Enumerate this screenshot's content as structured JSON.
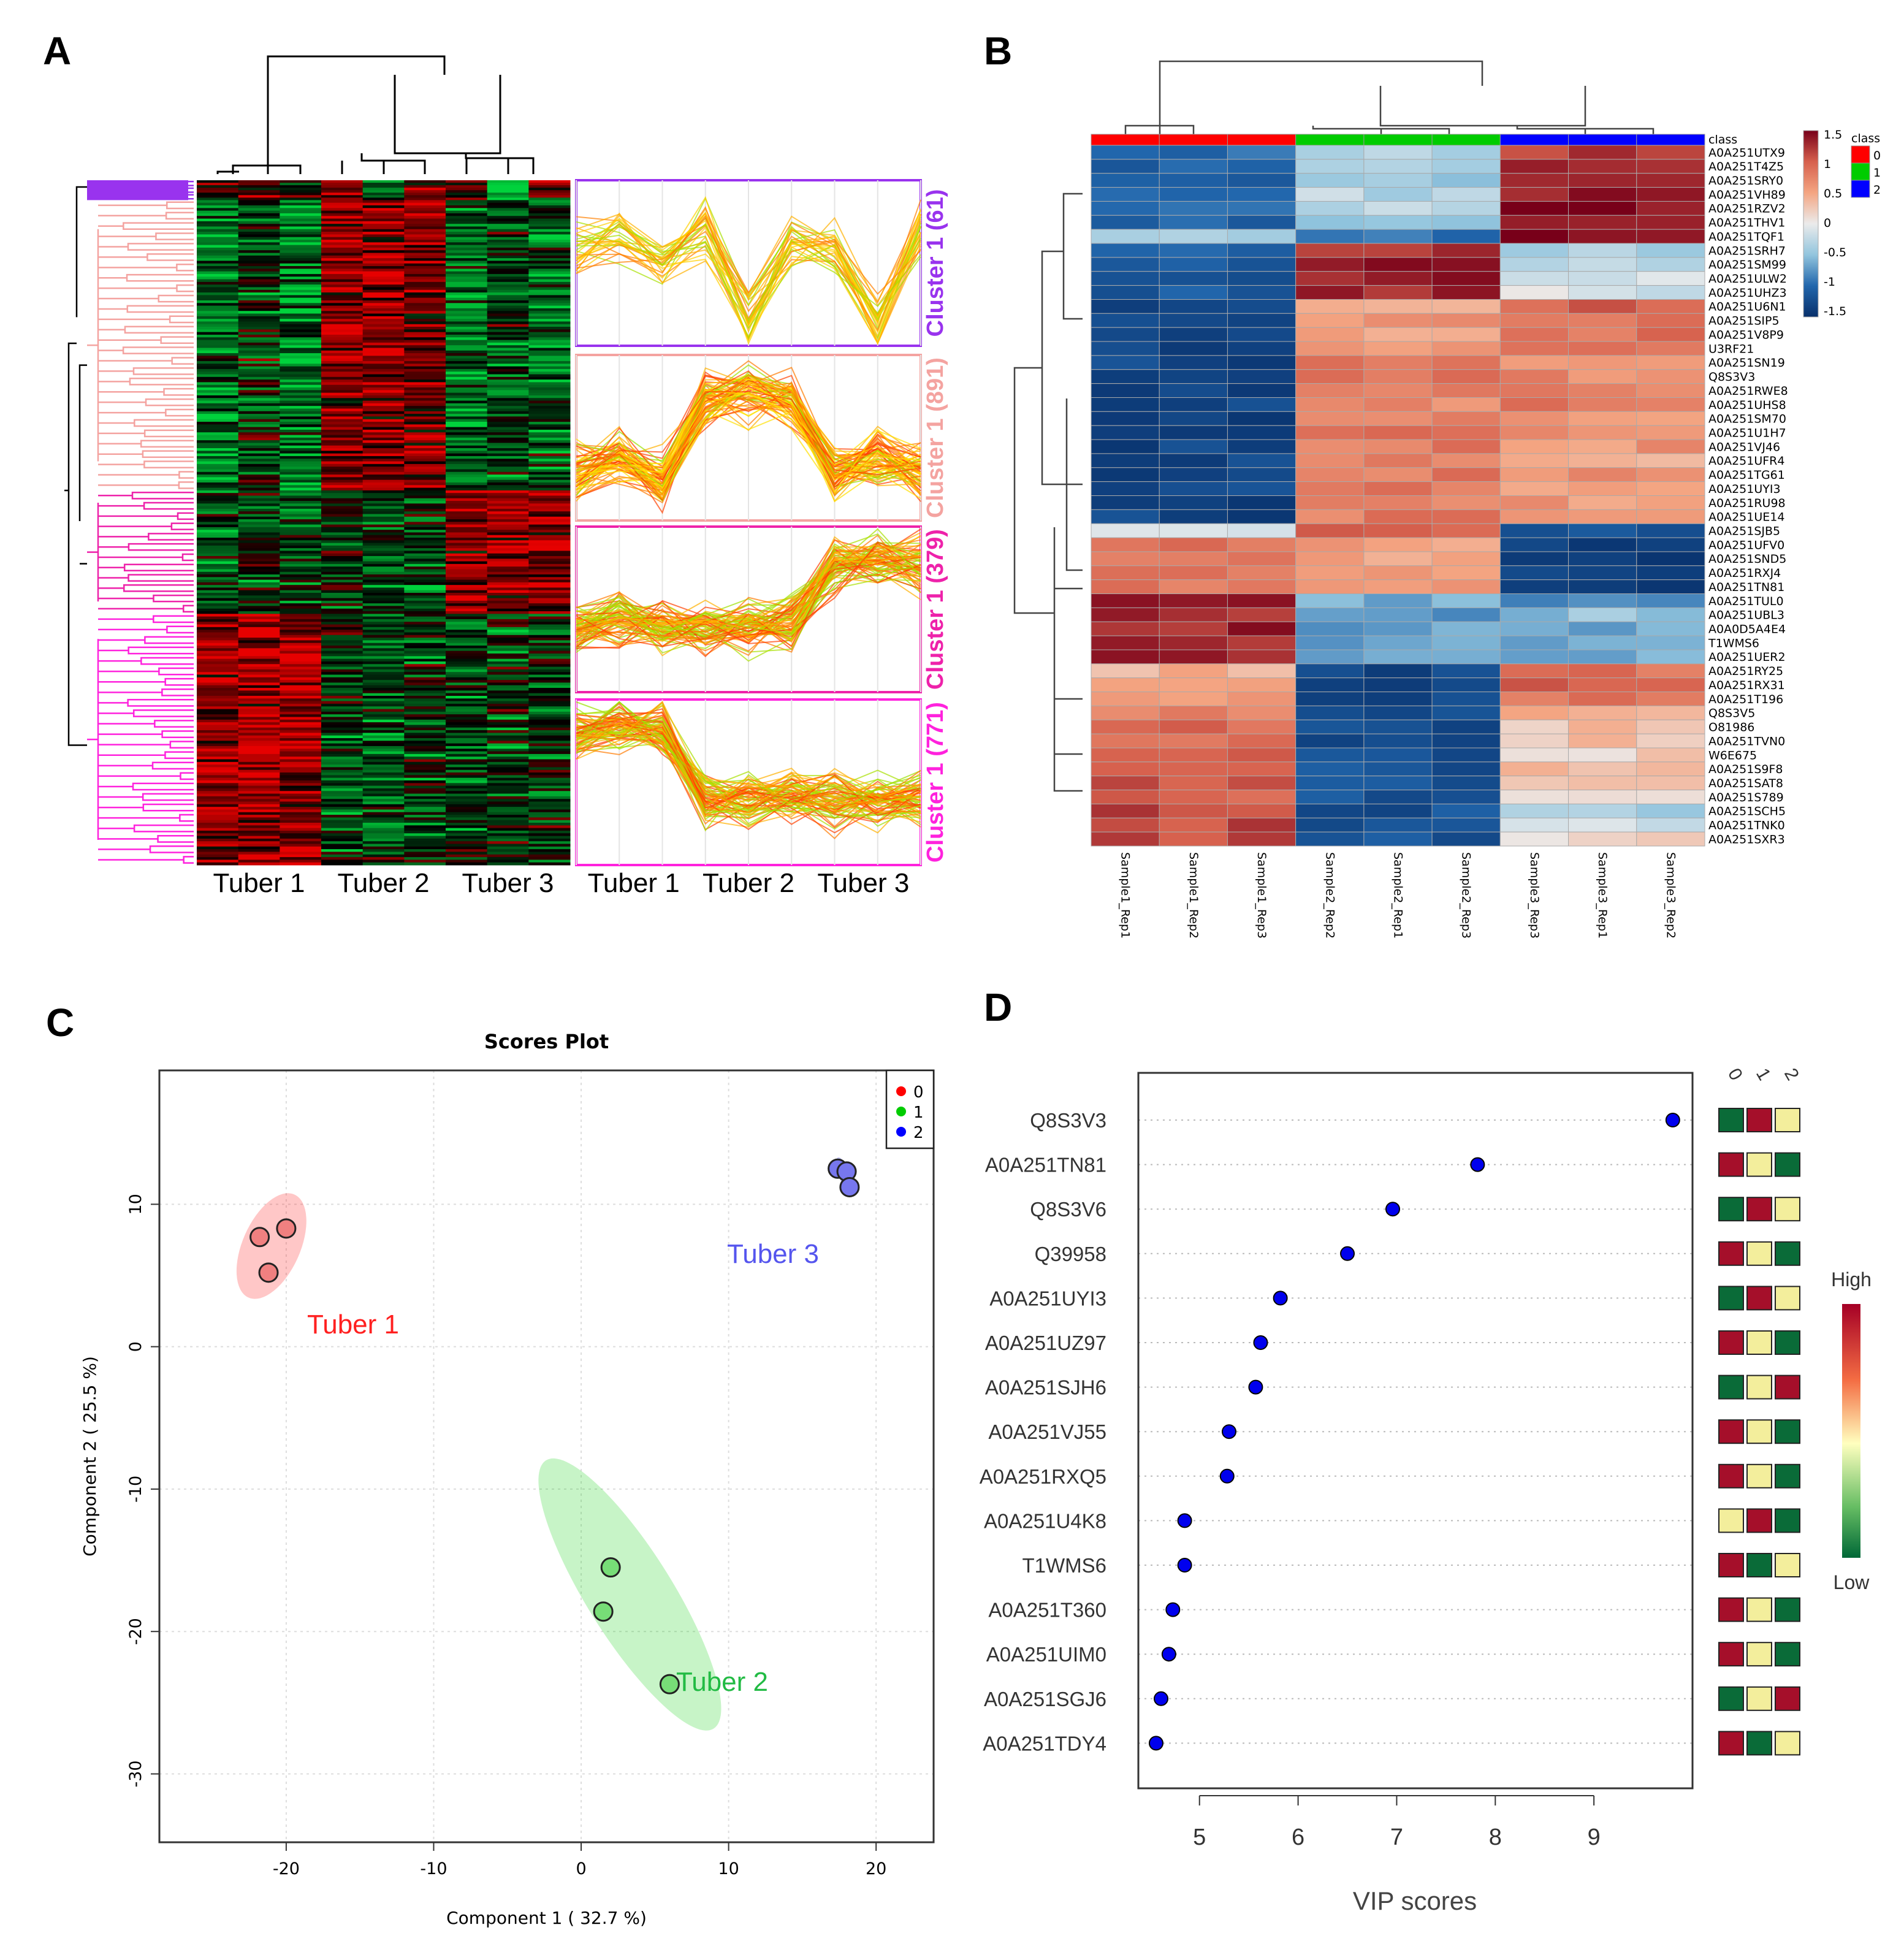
{
  "panels": {
    "a": "A",
    "b": "B",
    "c": "C",
    "d": "D"
  },
  "chart_data": [
    {
      "panel": "A",
      "type": "heatmap",
      "groups": [
        "Tuber 1",
        "Tuber 2",
        "Tuber 3"
      ],
      "replicates_per_group": 3,
      "color_low": "#00c040",
      "color_mid": "#000000",
      "color_high": "#e00000",
      "clusters": [
        {
          "label": "Cluster 1 (61)",
          "size": 61,
          "color": "#9933ee",
          "profile": [
            0.2,
            0.5,
            0.0,
            0.6,
            -0.9,
            0.3,
            0.2,
            -1.0,
            0.5
          ]
        },
        {
          "label": "Cluster 1 (891)",
          "size": 891,
          "color": "#f4a3a0",
          "profile": [
            -0.6,
            -0.3,
            -0.7,
            0.6,
            0.7,
            0.6,
            -0.6,
            -0.3,
            -0.5
          ]
        },
        {
          "label": "Cluster 1 (379)",
          "size": 379,
          "color": "#ee22aa",
          "profile": [
            -0.3,
            -0.2,
            -0.3,
            -0.2,
            -0.3,
            -0.2,
            0.7,
            0.8,
            0.7
          ]
        },
        {
          "label": "Cluster 1 (771)",
          "size": 771,
          "color": "#ff22dd",
          "profile": [
            0.8,
            0.9,
            0.8,
            -0.3,
            -0.3,
            -0.2,
            -0.3,
            -0.3,
            -0.2
          ]
        }
      ]
    },
    {
      "panel": "B",
      "type": "heatmap",
      "columns": [
        "Sample1_Rep1",
        "Sample1_Rep2",
        "Sample1_Rep3",
        "Sample2_Rep2",
        "Sample2_Rep1",
        "Sample2_Rep3",
        "Sample3_Rep3",
        "Sample3_Rep1",
        "Sample3_Rep2"
      ],
      "column_class": [
        0,
        0,
        0,
        1,
        1,
        1,
        2,
        2,
        2
      ],
      "class_title": "class",
      "class_legend": [
        {
          "label": "0",
          "color": "#ff0000"
        },
        {
          "label": "1",
          "color": "#00cc00"
        },
        {
          "label": "2",
          "color": "#0000ff"
        }
      ],
      "scale_ticks": [
        "1.5",
        "1",
        "0.5",
        "0",
        "-0.5",
        "-1",
        "-1.5"
      ],
      "scale_range": [
        -1.5,
        1.5
      ],
      "rows": [
        {
          "id": "A0A251UTX9",
          "g": [
            -1.0,
            -0.3,
            1.2
          ]
        },
        {
          "id": "A0A251T4Z5",
          "g": [
            -1.0,
            -0.3,
            1.3
          ]
        },
        {
          "id": "A0A251SRY0",
          "g": [
            -1.0,
            -0.4,
            1.3
          ]
        },
        {
          "id": "A0A251VH89",
          "g": [
            -1.0,
            -0.3,
            1.3
          ]
        },
        {
          "id": "A0A251RZV2",
          "g": [
            -1.0,
            -0.3,
            1.4
          ]
        },
        {
          "id": "A0A251THV1",
          "g": [
            -1.0,
            -0.4,
            1.3
          ]
        },
        {
          "id": "A0A251TQF1",
          "g": [
            -0.4,
            -1.0,
            1.4
          ]
        },
        {
          "id": "A0A251SRH7",
          "g": [
            -1.0,
            1.3,
            -0.4
          ]
        },
        {
          "id": "A0A251SM99",
          "g": [
            -1.1,
            1.3,
            -0.2
          ]
        },
        {
          "id": "A0A251ULW2",
          "g": [
            -1.1,
            1.3,
            -0.2
          ]
        },
        {
          "id": "A0A251UHZ3",
          "g": [
            -1.1,
            1.3,
            -0.1
          ]
        },
        {
          "id": "A0A251U6N1",
          "g": [
            -1.3,
            0.5,
            1.0
          ]
        },
        {
          "id": "A0A251SIP5",
          "g": [
            -1.3,
            0.6,
            0.8
          ]
        },
        {
          "id": "A0A251V8P9",
          "g": [
            -1.3,
            0.5,
            0.9
          ]
        },
        {
          "id": "U3RF21",
          "g": [
            -1.3,
            0.5,
            0.9
          ]
        },
        {
          "id": "A0A251SN19",
          "g": [
            -1.3,
            0.8,
            0.6
          ]
        },
        {
          "id": "Q8S3V3",
          "g": [
            -1.3,
            0.8,
            0.7
          ]
        },
        {
          "id": "A0A251RWE8",
          "g": [
            -1.3,
            0.8,
            0.7
          ]
        },
        {
          "id": "A0A251UHS8",
          "g": [
            -1.3,
            0.7,
            0.8
          ]
        },
        {
          "id": "A0A251SM70",
          "g": [
            -1.3,
            0.8,
            0.6
          ]
        },
        {
          "id": "A0A251U1H7",
          "g": [
            -1.3,
            0.8,
            0.6
          ]
        },
        {
          "id": "A0A251VJ46",
          "g": [
            -1.3,
            0.8,
            0.6
          ]
        },
        {
          "id": "A0A251UFR4",
          "g": [
            -1.3,
            0.8,
            0.5
          ]
        },
        {
          "id": "A0A251TG61",
          "g": [
            -1.3,
            0.8,
            0.6
          ]
        },
        {
          "id": "A0A251UYI3",
          "g": [
            -1.3,
            0.8,
            0.6
          ]
        },
        {
          "id": "A0A251RU98",
          "g": [
            -1.3,
            0.8,
            0.6
          ]
        },
        {
          "id": "A0A251UE14",
          "g": [
            -1.3,
            0.8,
            0.6
          ]
        },
        {
          "id": "A0A251SJB5",
          "g": [
            -0.1,
            1.0,
            -1.2
          ]
        },
        {
          "id": "A0A251UFV0",
          "g": [
            0.8,
            0.5,
            -1.3
          ]
        },
        {
          "id": "A0A251SND5",
          "g": [
            0.8,
            0.5,
            -1.4
          ]
        },
        {
          "id": "A0A251RXJ4",
          "g": [
            0.8,
            0.6,
            -1.4
          ]
        },
        {
          "id": "A0A251TN81",
          "g": [
            0.8,
            0.5,
            -1.3
          ]
        },
        {
          "id": "A0A251TUL0",
          "g": [
            1.3,
            -0.6,
            -0.9
          ]
        },
        {
          "id": "A0A251UBL3",
          "g": [
            1.3,
            -0.7,
            -0.5
          ]
        },
        {
          "id": "A0A0D5A4E4",
          "g": [
            1.3,
            -0.7,
            -0.6
          ]
        },
        {
          "id": "T1WMS6",
          "g": [
            1.3,
            -0.7,
            -0.6
          ]
        },
        {
          "id": "A0A251UER2",
          "g": [
            1.3,
            -0.7,
            -0.6
          ]
        },
        {
          "id": "A0A251RY25",
          "g": [
            0.4,
            -1.3,
            0.9
          ]
        },
        {
          "id": "A0A251RX31",
          "g": [
            0.4,
            -1.3,
            1.0
          ]
        },
        {
          "id": "A0A251T196",
          "g": [
            0.6,
            -1.3,
            0.8
          ]
        },
        {
          "id": "Q8S3V5",
          "g": [
            0.8,
            -1.3,
            0.5
          ]
        },
        {
          "id": "O81986",
          "g": [
            0.9,
            -1.2,
            0.3
          ]
        },
        {
          "id": "A0A251TVN0",
          "g": [
            0.9,
            -1.2,
            0.3
          ]
        },
        {
          "id": "W6E675",
          "g": [
            1.0,
            -1.2,
            0.2
          ]
        },
        {
          "id": "A0A251S9F8",
          "g": [
            1.0,
            -1.2,
            0.3
          ]
        },
        {
          "id": "A0A251SAT8",
          "g": [
            1.0,
            -1.2,
            0.3
          ]
        },
        {
          "id": "A0A251S789",
          "g": [
            1.0,
            -1.2,
            0.1
          ]
        },
        {
          "id": "A0A251SCH5",
          "g": [
            1.1,
            -1.2,
            -0.4
          ]
        },
        {
          "id": "A0A251TNK0",
          "g": [
            1.1,
            -1.2,
            -0.1
          ]
        },
        {
          "id": "A0A251SXR3",
          "g": [
            1.1,
            -1.2,
            0.1
          ]
        }
      ]
    },
    {
      "panel": "C",
      "type": "scatter",
      "title": "Scores Plot",
      "xlabel": "Component 1 ( 32.7 %)",
      "ylabel": "Component 2 ( 25.5 %)",
      "xlim": [
        -28.6,
        23.9
      ],
      "ylim": [
        -34.8,
        19.4
      ],
      "xticks": [
        -20,
        -10,
        0,
        10,
        20
      ],
      "yticks": [
        10,
        0,
        -10,
        -20,
        -30
      ],
      "grid": true,
      "legend_position": "top-right",
      "series": [
        {
          "name": "0",
          "label": "Tuber 1",
          "color": "#ff0000",
          "fill": "#f08080",
          "points": [
            [
              -21.8,
              7.7
            ],
            [
              -20.0,
              8.3
            ],
            [
              -21.2,
              5.2
            ]
          ]
        },
        {
          "name": "1",
          "label": "Tuber 2",
          "color": "#00cc00",
          "fill": "#77dd77",
          "points": [
            [
              2.0,
              -15.5
            ],
            [
              1.5,
              -18.6
            ],
            [
              6.0,
              -23.7
            ]
          ]
        },
        {
          "name": "2",
          "label": "Tuber 3",
          "color": "#0000ff",
          "fill": "#7777ee",
          "points": [
            [
              17.4,
              12.5
            ],
            [
              18.0,
              12.3
            ],
            [
              18.2,
              11.2
            ]
          ]
        }
      ],
      "label_colors": {
        "Tuber 1": "#ff2020",
        "Tuber 2": "#22bb44",
        "Tuber 3": "#5555ee"
      }
    },
    {
      "panel": "D",
      "type": "scatter",
      "xlabel": "VIP scores",
      "xlim": [
        4.38,
        10.0
      ],
      "xticks": [
        5,
        6,
        7,
        8,
        9
      ],
      "class_columns": [
        "0",
        "1",
        "2"
      ],
      "scale_high": "High",
      "scale_low": "Low",
      "colors": {
        "H": "#a50f2a",
        "M": "#f3ee9c",
        "L": "#0a6b38"
      },
      "features": [
        {
          "name": "Q8S3V3",
          "vip": 9.8,
          "levels": [
            "L",
            "H",
            "M"
          ]
        },
        {
          "name": "A0A251TN81",
          "vip": 7.82,
          "levels": [
            "H",
            "M",
            "L"
          ]
        },
        {
          "name": "Q8S3V6",
          "vip": 6.96,
          "levels": [
            "L",
            "H",
            "M"
          ]
        },
        {
          "name": "Q39958",
          "vip": 6.5,
          "levels": [
            "H",
            "M",
            "L"
          ]
        },
        {
          "name": "A0A251UYI3",
          "vip": 5.82,
          "levels": [
            "L",
            "H",
            "M"
          ]
        },
        {
          "name": "A0A251UZ97",
          "vip": 5.62,
          "levels": [
            "H",
            "M",
            "L"
          ]
        },
        {
          "name": "A0A251SJH6",
          "vip": 5.57,
          "levels": [
            "L",
            "M",
            "H"
          ]
        },
        {
          "name": "A0A251VJ55",
          "vip": 5.3,
          "levels": [
            "H",
            "M",
            "L"
          ]
        },
        {
          "name": "A0A251RXQ5",
          "vip": 5.28,
          "levels": [
            "H",
            "M",
            "L"
          ]
        },
        {
          "name": "A0A251U4K8",
          "vip": 4.85,
          "levels": [
            "M",
            "H",
            "L"
          ]
        },
        {
          "name": "T1WMS6",
          "vip": 4.85,
          "levels": [
            "H",
            "L",
            "M"
          ]
        },
        {
          "name": "A0A251T360",
          "vip": 4.73,
          "levels": [
            "H",
            "M",
            "L"
          ]
        },
        {
          "name": "A0A251UIM0",
          "vip": 4.69,
          "levels": [
            "H",
            "M",
            "L"
          ]
        },
        {
          "name": "A0A251SGJ6",
          "vip": 4.61,
          "levels": [
            "L",
            "M",
            "H"
          ]
        },
        {
          "name": "A0A251TDY4",
          "vip": 4.56,
          "levels": [
            "H",
            "L",
            "M"
          ]
        }
      ]
    }
  ]
}
